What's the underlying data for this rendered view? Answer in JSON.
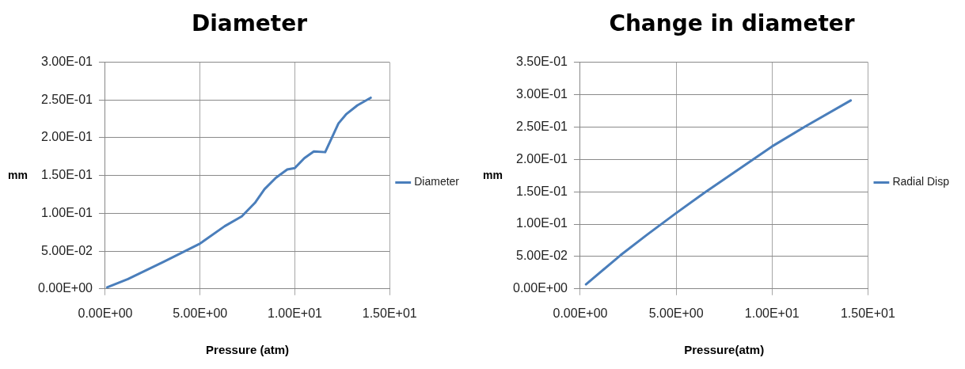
{
  "chart_data": [
    {
      "type": "line",
      "title": "Diameter",
      "xlabel": "Pressure (atm)",
      "ylabel": "mm",
      "legend": "right",
      "grid": true,
      "marker": "none",
      "line_style": "solid",
      "xlim": [
        0,
        15
      ],
      "xticks": [
        {
          "value": 0,
          "label": "0.00E+00"
        },
        {
          "value": 5,
          "label": "5.00E+00"
        },
        {
          "value": 10,
          "label": "1.00E+01"
        },
        {
          "value": 15,
          "label": "1.50E+01"
        }
      ],
      "ylim": [
        0,
        0.3
      ],
      "yticks": [
        {
          "value": 0,
          "label": "0.00E+00"
        },
        {
          "value": 0.05,
          "label": "5.00E-02"
        },
        {
          "value": 0.1,
          "label": "1.00E-01"
        },
        {
          "value": 0.15,
          "label": "1.50E-01"
        },
        {
          "value": 0.2,
          "label": "2.00E-01"
        },
        {
          "value": 0.25,
          "label": "2.50E-01"
        },
        {
          "value": 0.3,
          "label": "3.00E-01"
        }
      ],
      "series": [
        {
          "name": "Diameter",
          "color": "#4a7ebb",
          "x": [
            0.1,
            1.2,
            3.1,
            5.0,
            6.3,
            7.2,
            7.9,
            8.4,
            9.0,
            9.6,
            10.0,
            10.5,
            11.0,
            11.6,
            12.3,
            12.7,
            13.3,
            14.0
          ],
          "values": [
            0.002,
            0.013,
            0.036,
            0.06,
            0.083,
            0.096,
            0.114,
            0.132,
            0.147,
            0.158,
            0.16,
            0.173,
            0.182,
            0.181,
            0.219,
            0.231,
            0.243,
            0.253
          ]
        }
      ]
    },
    {
      "type": "line",
      "title": "Change in diameter",
      "xlabel": "Pressure(atm)",
      "ylabel": "mm",
      "legend": "right",
      "grid": true,
      "marker": "none",
      "line_style": "solid",
      "xlim": [
        0,
        15
      ],
      "xticks": [
        {
          "value": 0,
          "label": "0.00E+00"
        },
        {
          "value": 5,
          "label": "5.00E+00"
        },
        {
          "value": 10,
          "label": "1.00E+01"
        },
        {
          "value": 15,
          "label": "1.50E+01"
        }
      ],
      "ylim": [
        0,
        0.35
      ],
      "yticks": [
        {
          "value": 0,
          "label": "0.00E+00"
        },
        {
          "value": 0.05,
          "label": "5.00E-02"
        },
        {
          "value": 0.1,
          "label": "1.00E-01"
        },
        {
          "value": 0.15,
          "label": "1.50E-01"
        },
        {
          "value": 0.2,
          "label": "2.00E-01"
        },
        {
          "value": 0.25,
          "label": "2.50E-01"
        },
        {
          "value": 0.3,
          "label": "3.00E-01"
        },
        {
          "value": 0.35,
          "label": "3.50E-01"
        }
      ],
      "series": [
        {
          "name": "Radial Disp",
          "color": "#4a7ebb",
          "x": [
            0.3,
            2.1,
            3.5,
            5.0,
            6.5,
            10.0,
            11.8,
            14.1
          ],
          "values": [
            0.007,
            0.052,
            0.084,
            0.117,
            0.149,
            0.22,
            0.252,
            0.291
          ]
        }
      ]
    }
  ]
}
